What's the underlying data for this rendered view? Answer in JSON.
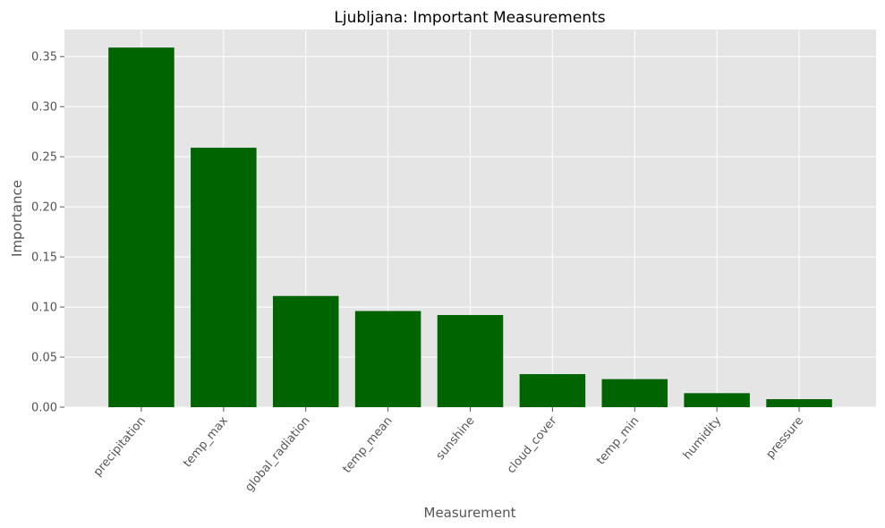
{
  "chart_data": {
    "type": "bar",
    "title": "Ljubljana: Important Measurements",
    "xlabel": "Measurement",
    "ylabel": "Importance",
    "categories": [
      "precipitation",
      "temp_max",
      "global_radiation",
      "temp_mean",
      "sunshine",
      "cloud_cover",
      "temp_min",
      "humidity",
      "pressure"
    ],
    "values": [
      0.359,
      0.259,
      0.111,
      0.096,
      0.092,
      0.033,
      0.028,
      0.014,
      0.008
    ],
    "ylim": [
      0,
      0.377
    ],
    "yticks": [
      "0.00",
      "0.05",
      "0.10",
      "0.15",
      "0.20",
      "0.25",
      "0.30",
      "0.35"
    ],
    "grid": true,
    "bar_color": "#006400",
    "plot_bg": "#e5e5e5",
    "grid_color": "#ffffff"
  }
}
